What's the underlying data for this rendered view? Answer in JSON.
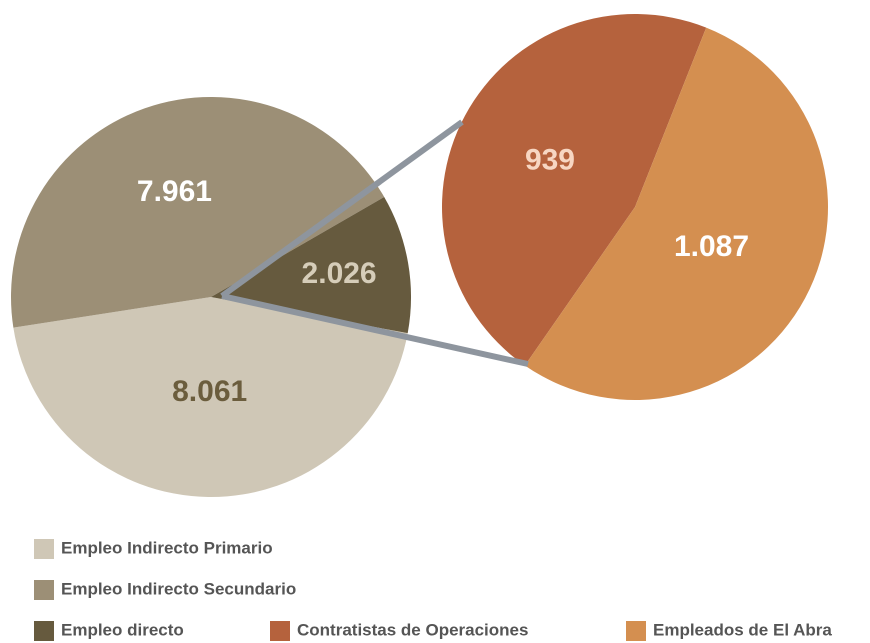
{
  "chart_data": [
    {
      "type": "pie",
      "categories": [
        "Empleo Indirecto Primario",
        "Empleo Indirecto Secundario",
        "Empleo directo"
      ],
      "values": [
        8061,
        7961,
        2026
      ],
      "value_labels": [
        "8.061",
        "7.961",
        "2.026"
      ],
      "colors": [
        "#cfc7b6",
        "#9c8f76",
        "#665a3e"
      ]
    },
    {
      "type": "pie",
      "categories": [
        "Contratistas de Operaciones",
        "Empleados de El Abra"
      ],
      "values": [
        939,
        1087
      ],
      "value_labels": [
        "939",
        "1.087"
      ],
      "colors": [
        "#b5623d",
        "#d48f50"
      ]
    }
  ]
}
